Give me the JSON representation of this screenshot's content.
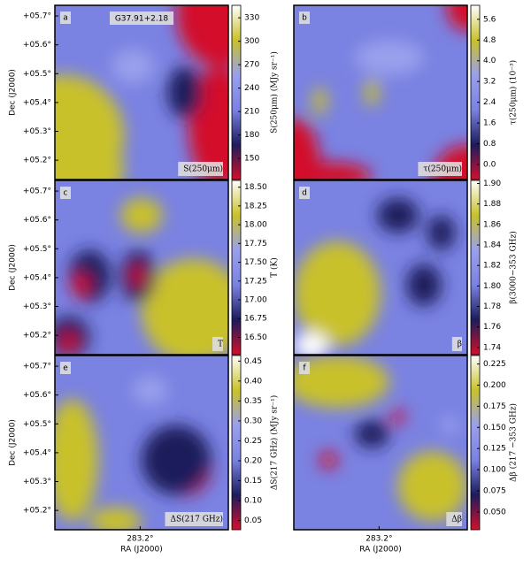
{
  "colormap": [
    "#d3102c",
    "#1c1c5c",
    "#7a82e2",
    "#9aa0ec",
    "#c9c12a",
    "#ffffff"
  ],
  "chart_data": [
    {
      "type": "heatmap",
      "label": "a",
      "title": "G37.91+2.18",
      "annotation": "S(250μm)",
      "colorbar_label": "S(250μm) (MJy sr⁻¹)",
      "clim": [
        123,
        346
      ],
      "cticks": [
        150,
        180,
        210,
        240,
        270,
        300,
        330
      ],
      "xlim": [
        283.49,
        282.9
      ],
      "ylim": [
        5.133,
        5.737
      ],
      "ylabel": "Dec (J2000)",
      "yticks": [
        {
          "value": 5.2,
          "label": "+05.2°"
        },
        {
          "value": 5.3,
          "label": "+05.3°"
        },
        {
          "value": 5.4,
          "label": "+05.4°"
        },
        {
          "value": 5.5,
          "label": "+05.5°"
        },
        {
          "value": 5.6,
          "label": "+05.6°"
        },
        {
          "value": 5.7,
          "label": "+05.7°"
        }
      ]
    },
    {
      "type": "heatmap",
      "label": "b",
      "annotation": "τ(250μm)",
      "colorbar_label": "τ(250μm) (10⁻³)",
      "clim": [
        -0.58,
        6.14
      ],
      "cticks": [
        {
          "value": 0,
          "label": "0.0"
        },
        0.8,
        1.6,
        2.4,
        3.2,
        {
          "value": 4,
          "label": "4.0"
        },
        4.8,
        5.6
      ],
      "xlim": [
        283.49,
        282.9
      ],
      "ylim": [
        5.133,
        5.737
      ]
    },
    {
      "type": "heatmap",
      "label": "c",
      "annotation": "T",
      "colorbar_label": "T (K)",
      "clim": [
        16.27,
        18.59
      ],
      "cticks": [
        {
          "value": 16.5,
          "label": "16.50"
        },
        16.75,
        {
          "value": 17,
          "label": "17.00"
        },
        17.25,
        {
          "value": 17.5,
          "label": "17.50"
        },
        17.75,
        {
          "value": 18,
          "label": "18.00"
        },
        18.25,
        {
          "value": 18.5,
          "label": "18.50"
        }
      ],
      "xlim": [
        283.49,
        282.9
      ],
      "ylim": [
        5.133,
        5.737
      ],
      "ylabel": "Dec (J2000)",
      "yticks": [
        {
          "value": 5.2,
          "label": "+05.2°"
        },
        {
          "value": 5.3,
          "label": "+05.3°"
        },
        {
          "value": 5.4,
          "label": "+05.4°"
        },
        {
          "value": 5.5,
          "label": "+05.5°"
        },
        {
          "value": 5.6,
          "label": "+05.6°"
        },
        {
          "value": 5.7,
          "label": "+05.7°"
        }
      ]
    },
    {
      "type": "heatmap",
      "label": "d",
      "annotation": "β",
      "colorbar_label": "β(3000−353 GHz)",
      "clim": [
        1.733,
        1.903
      ],
      "cticks": [
        1.74,
        1.76,
        1.78,
        {
          "value": 1.8,
          "label": "1.80"
        },
        1.82,
        1.84,
        1.86,
        1.88,
        {
          "value": 1.9,
          "label": "1.90"
        }
      ],
      "xlim": [
        283.49,
        282.9
      ],
      "ylim": [
        5.133,
        5.737
      ]
    },
    {
      "type": "heatmap",
      "label": "e",
      "annotation": "ΔS(217 GHz)",
      "colorbar_label": "ΔS(217 GHz) (MJy sr⁻¹)",
      "clim": [
        0.027,
        0.464
      ],
      "cticks": [
        0.05,
        {
          "value": 0.1,
          "label": "0.10"
        },
        0.15,
        {
          "value": 0.2,
          "label": "0.20"
        },
        0.25,
        {
          "value": 0.3,
          "label": "0.30"
        },
        0.35,
        {
          "value": 0.4,
          "label": "0.40"
        },
        0.45
      ],
      "xlim": [
        283.49,
        282.9
      ],
      "ylim": [
        5.133,
        5.737
      ],
      "ylabel": "Dec (J2000)",
      "xlabel": "RA (J2000)",
      "xticks": [
        {
          "value": 283.2,
          "label": "283.2°"
        }
      ],
      "yticks": [
        {
          "value": 5.2,
          "label": "+05.2°"
        },
        {
          "value": 5.3,
          "label": "+05.3°"
        },
        {
          "value": 5.4,
          "label": "+05.4°"
        },
        {
          "value": 5.5,
          "label": "+05.5°"
        },
        {
          "value": 5.6,
          "label": "+05.6°"
        },
        {
          "value": 5.7,
          "label": "+05.7°"
        }
      ]
    },
    {
      "type": "heatmap",
      "label": "f",
      "annotation": "Δβ",
      "colorbar_label": "Δβ (217 −353 GHz)",
      "clim": [
        0.029,
        0.235
      ],
      "cticks": [
        {
          "value": 0.05,
          "label": "0.050"
        },
        {
          "value": 0.075,
          "label": "0.075"
        },
        {
          "value": 0.1,
          "label": "0.100"
        },
        {
          "value": 0.125,
          "label": "0.125"
        },
        {
          "value": 0.15,
          "label": "0.150"
        },
        {
          "value": 0.175,
          "label": "0.175"
        },
        {
          "value": 0.2,
          "label": "0.200"
        },
        {
          "value": 0.225,
          "label": "0.225"
        }
      ],
      "xlim": [
        283.49,
        282.9
      ],
      "ylim": [
        5.133,
        5.737
      ],
      "xlabel": "RA (J2000)",
      "xticks": [
        {
          "value": 283.2,
          "label": "283.2°"
        }
      ]
    }
  ]
}
